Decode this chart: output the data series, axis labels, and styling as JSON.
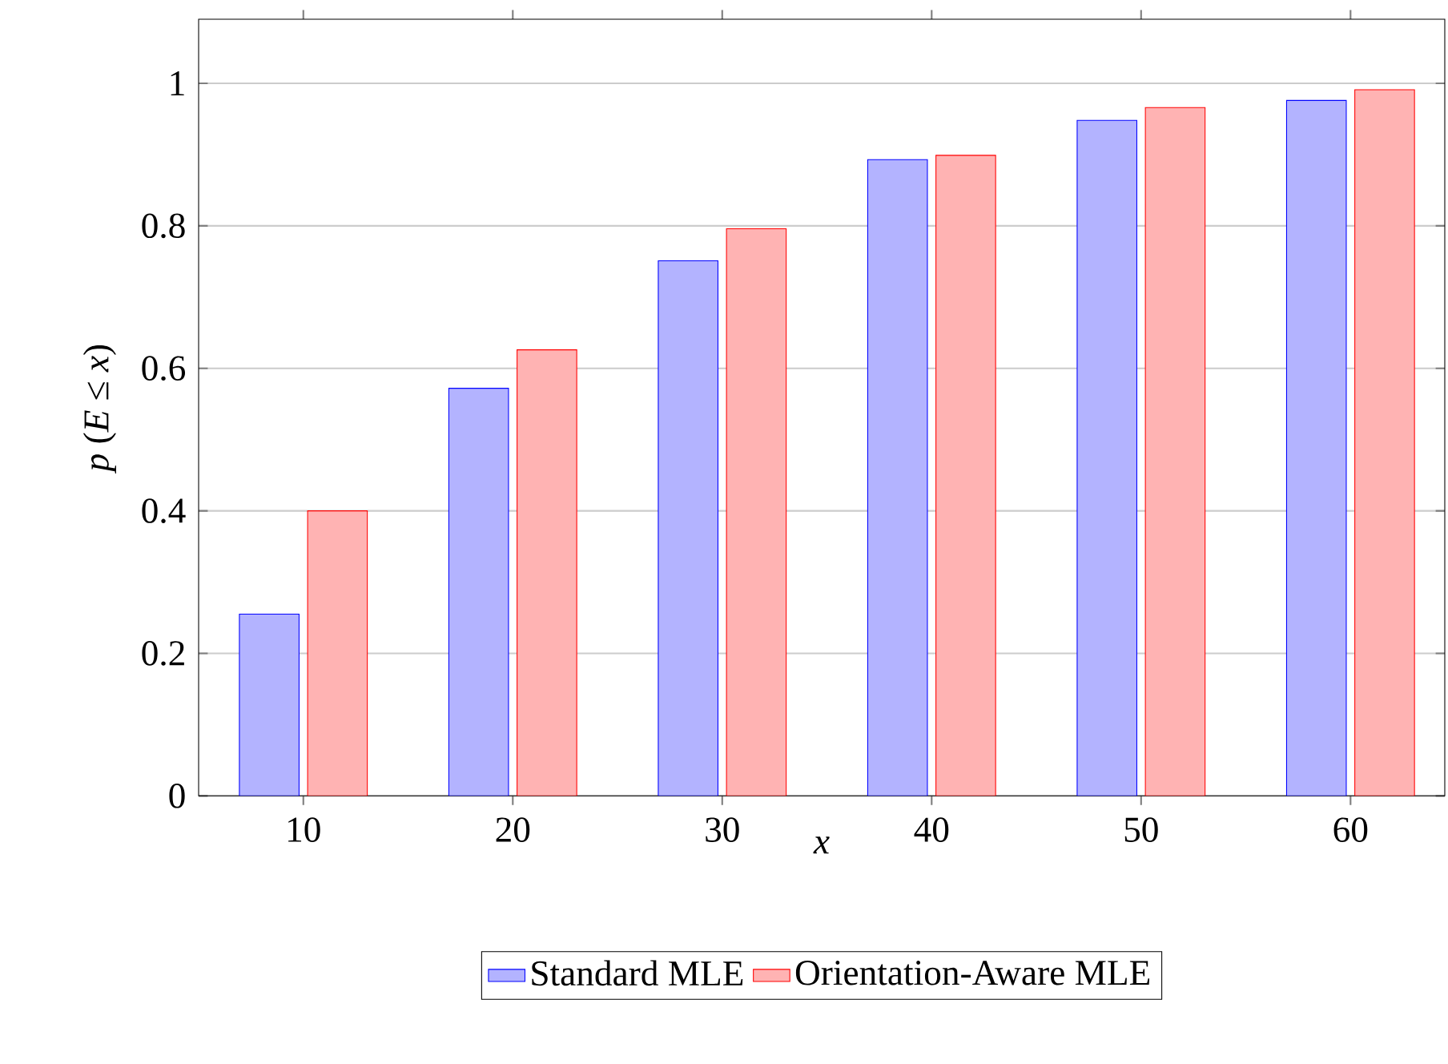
{
  "chart_data": {
    "type": "bar",
    "xlabel": "x",
    "ylabel": "*p* (*E* ≤ *x*)",
    "x": [
      10,
      20,
      30,
      40,
      50,
      60
    ],
    "series": [
      {
        "name": "Standard MLE",
        "color": "#b3b3ff",
        "values": [
          0.255,
          0.572,
          0.751,
          0.893,
          0.948,
          0.976
        ]
      },
      {
        "name": "Orientation-Aware MLE",
        "color": "#ffb3b3",
        "values": [
          0.4,
          0.626,
          0.796,
          0.899,
          0.966,
          0.991
        ]
      }
    ],
    "xlim": [
      5,
      64.5
    ],
    "ylim": [
      0,
      1.09
    ],
    "xticks": [
      10,
      20,
      30,
      40,
      50,
      60
    ],
    "yticks": [
      0,
      0.2,
      0.4,
      0.6,
      0.8,
      1
    ],
    "grid": "y",
    "legend": "bottom"
  }
}
